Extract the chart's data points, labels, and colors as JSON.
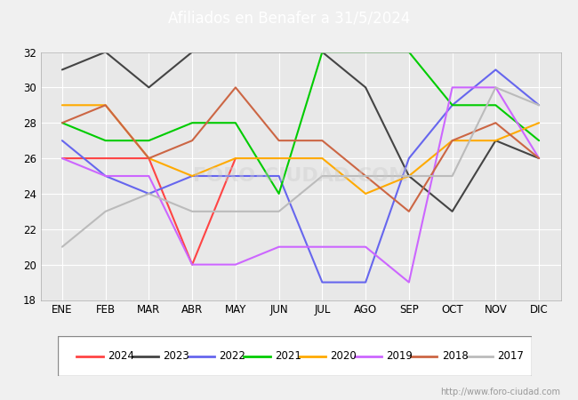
{
  "title": "Afiliados en Benafer a 31/5/2024",
  "title_bg_color": "#4488dd",
  "months": [
    "ENE",
    "FEB",
    "MAR",
    "ABR",
    "MAY",
    "JUN",
    "JUL",
    "AGO",
    "SEP",
    "OCT",
    "NOV",
    "DIC"
  ],
  "ylim": [
    18,
    32
  ],
  "yticks": [
    18,
    20,
    22,
    24,
    26,
    28,
    30,
    32
  ],
  "series": {
    "2024": {
      "color": "#ff4444",
      "data": [
        26,
        26,
        26,
        20,
        26,
        null,
        null,
        null,
        null,
        null,
        null,
        null
      ]
    },
    "2023": {
      "color": "#444444",
      "data": [
        31,
        32,
        30,
        32,
        32,
        32,
        32,
        30,
        25,
        23,
        27,
        26
      ]
    },
    "2022": {
      "color": "#6666ee",
      "data": [
        27,
        25,
        24,
        25,
        25,
        25,
        19,
        19,
        26,
        29,
        31,
        29
      ]
    },
    "2021": {
      "color": "#00cc00",
      "data": [
        28,
        27,
        27,
        28,
        28,
        24,
        32,
        32,
        32,
        29,
        29,
        27
      ]
    },
    "2020": {
      "color": "#ffaa00",
      "data": [
        29,
        29,
        26,
        25,
        26,
        26,
        26,
        24,
        25,
        27,
        27,
        28
      ]
    },
    "2019": {
      "color": "#cc66ff",
      "data": [
        26,
        25,
        25,
        20,
        20,
        21,
        21,
        21,
        19,
        30,
        30,
        26
      ]
    },
    "2018": {
      "color": "#cc6644",
      "data": [
        28,
        29,
        26,
        27,
        30,
        27,
        27,
        25,
        23,
        27,
        28,
        26
      ]
    },
    "2017": {
      "color": "#bbbbbb",
      "data": [
        21,
        23,
        24,
        23,
        23,
        23,
        25,
        25,
        25,
        25,
        30,
        29
      ]
    }
  },
  "legend_order": [
    "2024",
    "2023",
    "2022",
    "2021",
    "2020",
    "2019",
    "2018",
    "2017"
  ],
  "url_text": "http://www.foro-ciudad.com",
  "background_plot": "#e8e8e8",
  "grid_color": "#ffffff"
}
